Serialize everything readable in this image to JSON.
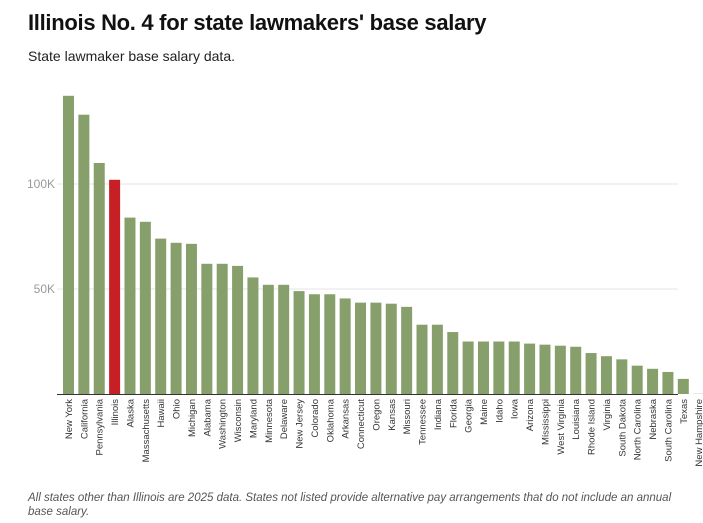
{
  "header": {
    "title": "Illinois No. 4 for state lawmakers' base salary",
    "subtitle": "State lawmaker base salary data."
  },
  "footnote": "All states other than Illinois are 2025 data. States not listed provide alternative pay arrangements that do not include an annual base salary.",
  "colors": {
    "bar": "#87a06b",
    "highlight": "#c62026",
    "grid": "#e6e6e6",
    "axis": "#333333"
  },
  "chart_data": {
    "type": "bar",
    "title": "Illinois No. 4 for state lawmakers' base salary",
    "subtitle": "State lawmaker base salary data.",
    "highlight": "Illinois",
    "ylim": [
      0,
      142000
    ],
    "yticks": [
      {
        "value": 50000,
        "label": "50K"
      },
      {
        "value": 100000,
        "label": "100K"
      }
    ],
    "grid": true,
    "categories": [
      "New York",
      "California",
      "Pennsylvania",
      "Illinois",
      "Alaska",
      "Massachusetts",
      "Hawaii",
      "Ohio",
      "Michigan",
      "Alabama",
      "Washington",
      "Wisconsin",
      "Maryland",
      "Minnesota",
      "Delaware",
      "New Jersey",
      "Colorado",
      "Oklahoma",
      "Arkansas",
      "Connecticut",
      "Oregon",
      "Kansas",
      "Missouri",
      "Tennessee",
      "Indiana",
      "Florida",
      "Georgia",
      "Maine",
      "Idaho",
      "Iowa",
      "Arizona",
      "Mississippi",
      "West Virginia",
      "Louisiana",
      "Rhode Island",
      "Virginia",
      "South Dakota",
      "North Carolina",
      "Nebraska",
      "South Carolina",
      "Texas",
      "New Hampshire"
    ],
    "values": [
      142000,
      133000,
      110000,
      102000,
      84000,
      82000,
      74000,
      72000,
      71500,
      62000,
      62000,
      61000,
      55500,
      52000,
      52000,
      49000,
      47500,
      47500,
      45500,
      43500,
      43500,
      43000,
      41500,
      33000,
      33000,
      29500,
      25000,
      25000,
      25000,
      25000,
      24000,
      23500,
      23000,
      22500,
      19500,
      18000,
      16500,
      13500,
      12000,
      10500,
      7200,
      100
    ]
  }
}
